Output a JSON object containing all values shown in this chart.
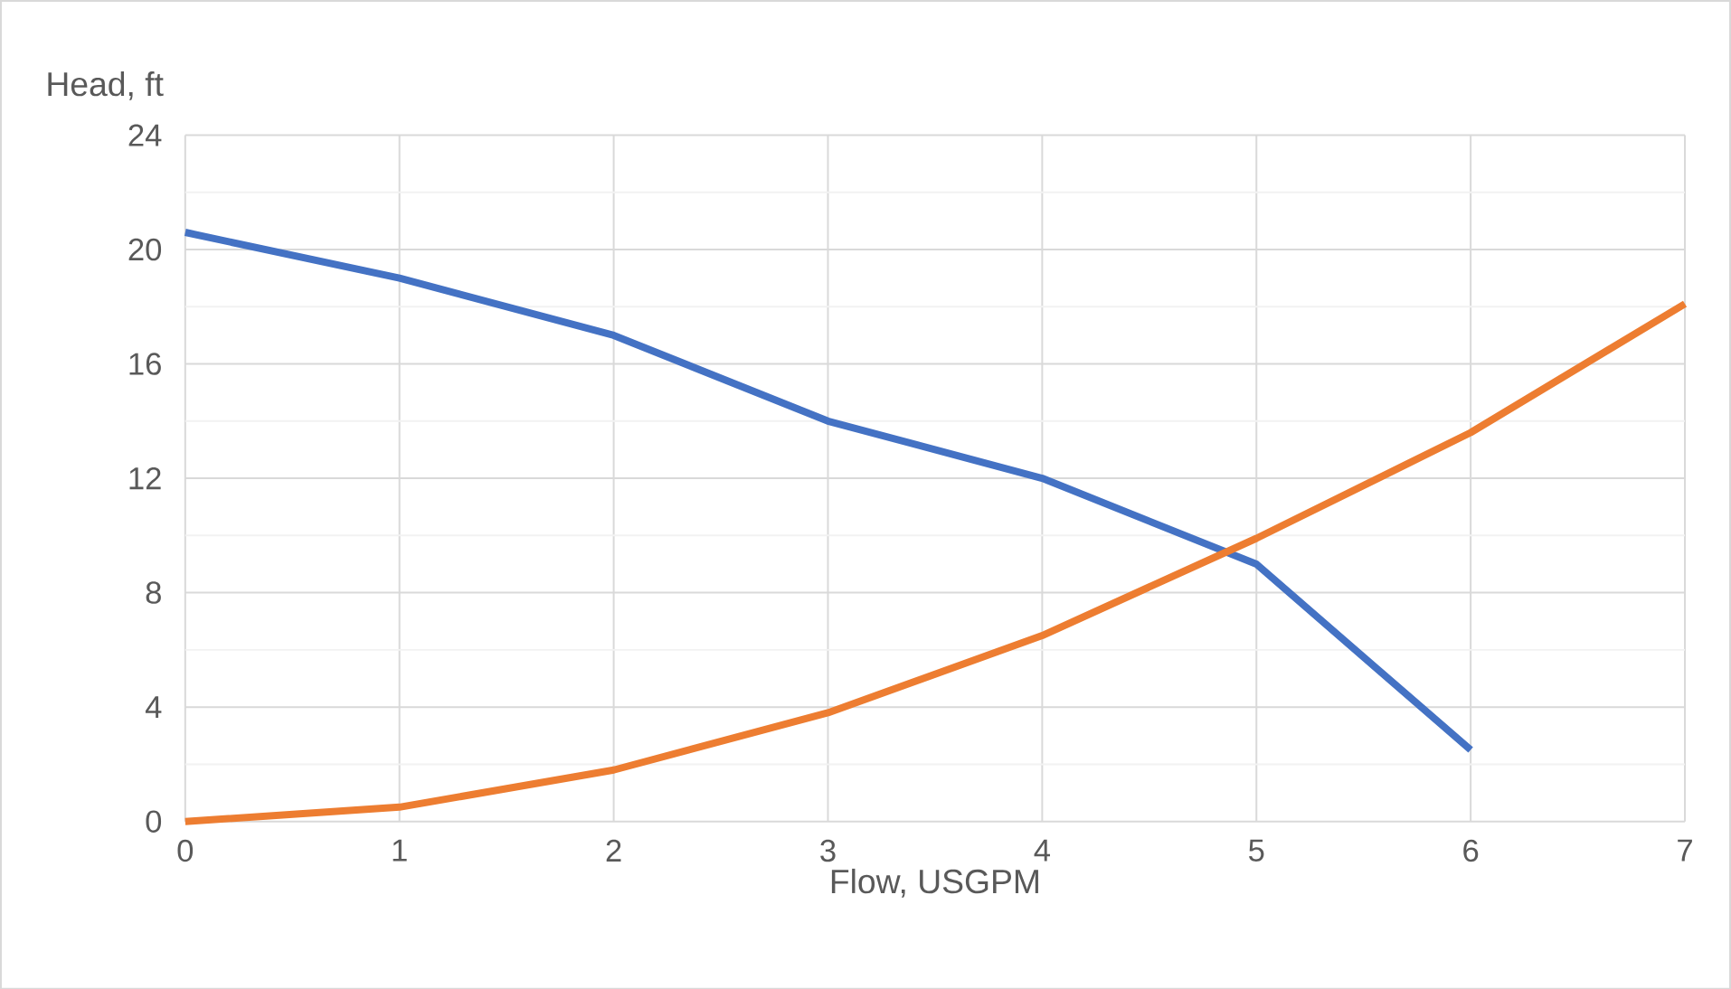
{
  "chart_data": {
    "type": "line",
    "xlabel": "Flow, USGPM",
    "ylabel": "Head, ft",
    "x": [
      0,
      1,
      2,
      3,
      4,
      5,
      6,
      7
    ],
    "series": [
      {
        "color": "#4472c4",
        "values": [
          20.6,
          19.0,
          17.0,
          14.0,
          12.0,
          9.0,
          2.5,
          null
        ]
      },
      {
        "color": "#ed7d31",
        "values": [
          0,
          0.5,
          1.8,
          3.8,
          6.5,
          9.9,
          13.6,
          18.1
        ]
      }
    ],
    "xlim": [
      0,
      7
    ],
    "ylim": [
      0,
      24
    ],
    "xticks": [
      0,
      1,
      2,
      3,
      4,
      5,
      6,
      7
    ],
    "yticks": [
      0,
      4,
      8,
      12,
      16,
      20,
      24
    ],
    "grid": true,
    "marker": "none",
    "line_style": "solid"
  }
}
